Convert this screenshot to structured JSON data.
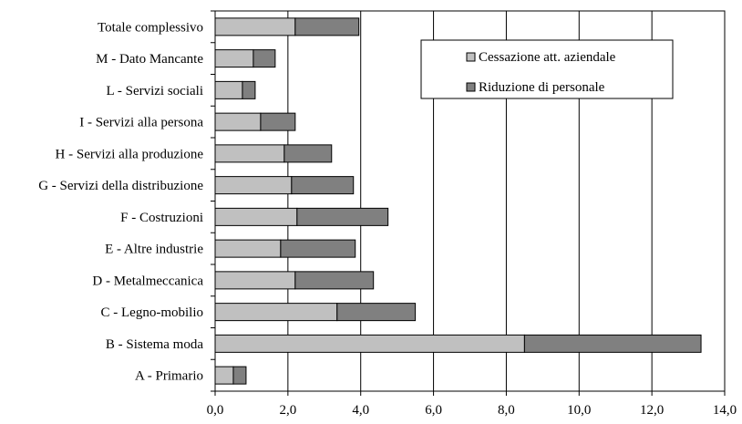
{
  "chart_data": {
    "type": "bar",
    "orientation": "horizontal",
    "stacked": true,
    "categories": [
      "A - Primario",
      "B - Sistema moda",
      "C - Legno-mobilio",
      "D - Metalmeccanica",
      "E - Altre industrie",
      "F - Costruzioni",
      "G - Servizi della distribuzione",
      "H - Servizi alla produzione",
      "I - Servizi alla persona",
      "L - Servizi sociali",
      "M - Dato Mancante",
      "Totale complessivo"
    ],
    "series": [
      {
        "name": "Cessazione att. aziendale",
        "color": "#c0c0c0",
        "values": [
          0.5,
          8.5,
          3.35,
          2.2,
          1.8,
          2.25,
          2.1,
          1.9,
          1.25,
          0.75,
          1.05,
          2.2
        ]
      },
      {
        "name": "Riduzione di personale",
        "color": "#808080",
        "values": [
          0.35,
          4.85,
          2.15,
          2.15,
          2.05,
          2.5,
          1.7,
          1.3,
          0.95,
          0.35,
          0.6,
          1.75
        ]
      }
    ],
    "xlim": [
      0,
      14
    ],
    "xticks": [
      0,
      2,
      4,
      6,
      8,
      10,
      12,
      14
    ],
    "xtick_labels": [
      "0,0",
      "2,0",
      "4,0",
      "6,0",
      "8,0",
      "10,0",
      "12,0",
      "14,0"
    ],
    "grid": "vertical",
    "legend": "top-right",
    "title": "",
    "xlabel": "",
    "ylabel": ""
  }
}
